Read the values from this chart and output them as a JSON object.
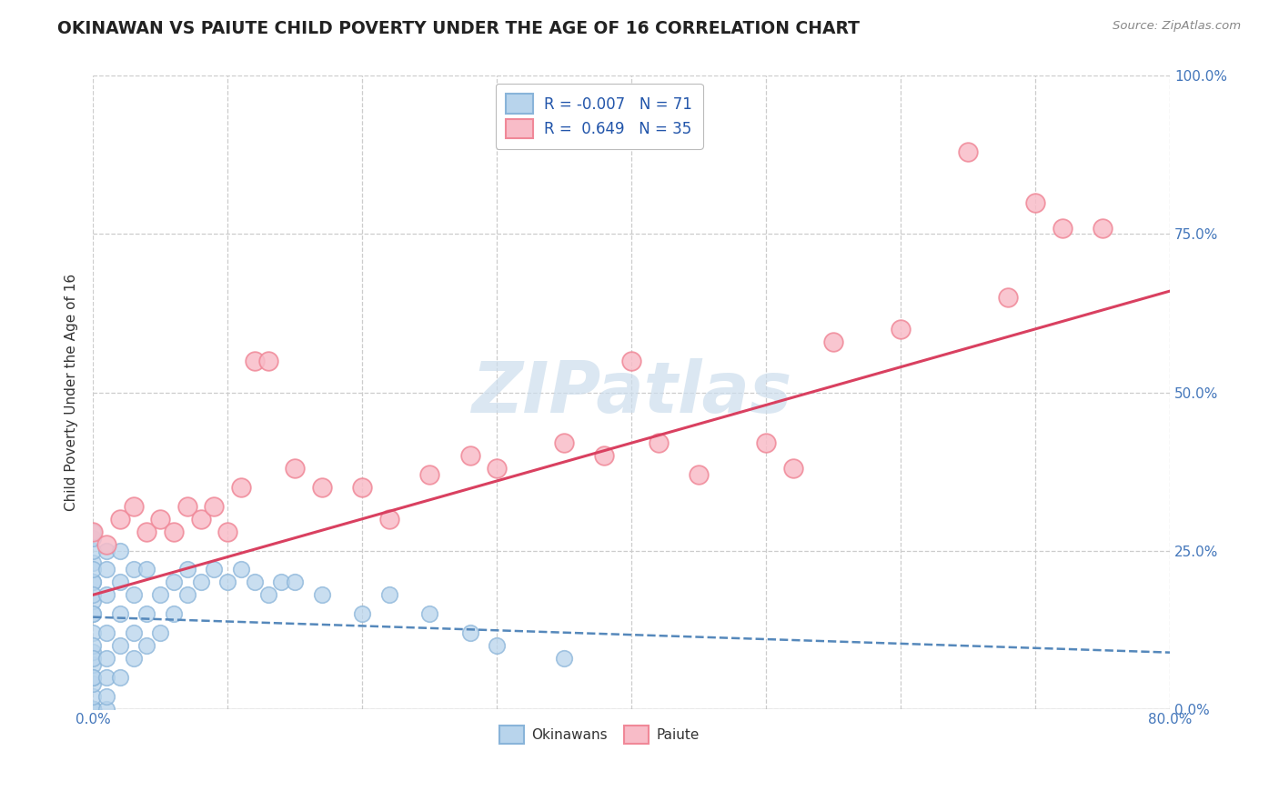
{
  "title": "OKINAWAN VS PAIUTE CHILD POVERTY UNDER THE AGE OF 16 CORRELATION CHART",
  "source": "Source: ZipAtlas.com",
  "ylabel": "Child Poverty Under the Age of 16",
  "xlim": [
    0,
    0.8
  ],
  "ylim": [
    0,
    1.0
  ],
  "xticks": [
    0.0,
    0.1,
    0.2,
    0.3,
    0.4,
    0.5,
    0.6,
    0.7,
    0.8
  ],
  "xticklabels_sparse": [
    "0.0%",
    "",
    "",
    "",
    "",
    "",
    "",
    "",
    "80.0%"
  ],
  "yticks": [
    0.0,
    0.25,
    0.5,
    0.75,
    1.0
  ],
  "yticklabels": [
    "0.0%",
    "25.0%",
    "50.0%",
    "75.0%",
    "100.0%"
  ],
  "okinawan_R": -0.007,
  "okinawan_N": 71,
  "paiute_R": 0.649,
  "paiute_N": 35,
  "okinawan_color": "#89b4d9",
  "okinawan_fill": "#b8d4ec",
  "paiute_color": "#f08898",
  "paiute_fill": "#f8bcc8",
  "regression_blue": "#5588bb",
  "regression_pink": "#d94060",
  "background_color": "#ffffff",
  "grid_color": "#cccccc",
  "watermark_color": "#cddeed",
  "okinawan_x": [
    0.0,
    0.0,
    0.0,
    0.0,
    0.0,
    0.0,
    0.0,
    0.0,
    0.0,
    0.0,
    0.0,
    0.0,
    0.0,
    0.0,
    0.0,
    0.0,
    0.0,
    0.0,
    0.0,
    0.0,
    0.0,
    0.0,
    0.0,
    0.0,
    0.0,
    0.0,
    0.0,
    0.0,
    0.0,
    0.0,
    0.01,
    0.01,
    0.01,
    0.01,
    0.01,
    0.01,
    0.01,
    0.01,
    0.02,
    0.02,
    0.02,
    0.02,
    0.02,
    0.03,
    0.03,
    0.03,
    0.03,
    0.04,
    0.04,
    0.04,
    0.05,
    0.05,
    0.06,
    0.06,
    0.07,
    0.07,
    0.08,
    0.09,
    0.1,
    0.11,
    0.12,
    0.13,
    0.14,
    0.15,
    0.17,
    0.2,
    0.22,
    0.25,
    0.28,
    0.3,
    0.35
  ],
  "okinawan_y": [
    0.0,
    0.0,
    0.0,
    0.0,
    0.0,
    0.0,
    0.0,
    0.0,
    0.0,
    0.0,
    0.02,
    0.04,
    0.05,
    0.07,
    0.09,
    0.12,
    0.15,
    0.17,
    0.2,
    0.23,
    0.25,
    0.27,
    0.28,
    0.2,
    0.22,
    0.18,
    0.15,
    0.1,
    0.08,
    0.05,
    0.0,
    0.02,
    0.05,
    0.08,
    0.12,
    0.18,
    0.22,
    0.25,
    0.05,
    0.1,
    0.15,
    0.2,
    0.25,
    0.08,
    0.12,
    0.18,
    0.22,
    0.1,
    0.15,
    0.22,
    0.12,
    0.18,
    0.15,
    0.2,
    0.18,
    0.22,
    0.2,
    0.22,
    0.2,
    0.22,
    0.2,
    0.18,
    0.2,
    0.2,
    0.18,
    0.15,
    0.18,
    0.15,
    0.12,
    0.1,
    0.08
  ],
  "paiute_x": [
    0.0,
    0.01,
    0.02,
    0.03,
    0.04,
    0.05,
    0.06,
    0.07,
    0.08,
    0.09,
    0.1,
    0.11,
    0.12,
    0.13,
    0.15,
    0.17,
    0.2,
    0.22,
    0.25,
    0.28,
    0.3,
    0.35,
    0.38,
    0.4,
    0.42,
    0.45,
    0.5,
    0.52,
    0.55,
    0.6,
    0.65,
    0.68,
    0.7,
    0.72,
    0.75
  ],
  "paiute_y": [
    0.28,
    0.26,
    0.3,
    0.32,
    0.28,
    0.3,
    0.28,
    0.32,
    0.3,
    0.32,
    0.28,
    0.35,
    0.55,
    0.55,
    0.38,
    0.35,
    0.35,
    0.3,
    0.37,
    0.4,
    0.38,
    0.42,
    0.4,
    0.55,
    0.42,
    0.37,
    0.42,
    0.38,
    0.58,
    0.6,
    0.88,
    0.65,
    0.8,
    0.76,
    0.76
  ]
}
